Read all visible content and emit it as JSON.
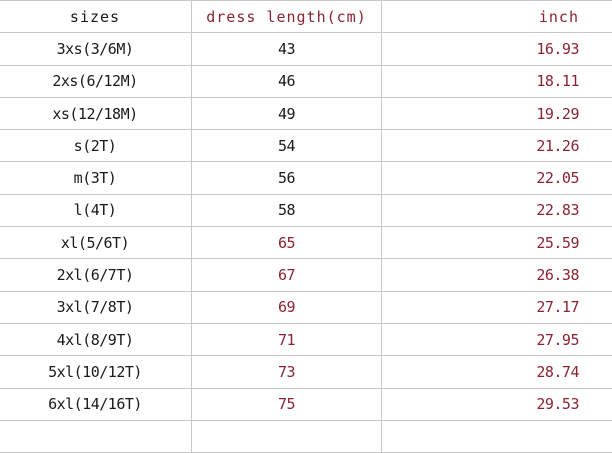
{
  "header": {
    "sizes": "sizes",
    "length": "dress length(cm)",
    "inch": "inch"
  },
  "colors": {
    "red": "#8a2430",
    "black": "#1a1a1a"
  },
  "rows": [
    {
      "size": "3xs(3/6M)",
      "cm": "43",
      "inch": "16.93",
      "cm_red": false
    },
    {
      "size": "2xs(6/12M)",
      "cm": "46",
      "inch": "18.11",
      "cm_red": false
    },
    {
      "size": "xs(12/18M)",
      "cm": "49",
      "inch": "19.29",
      "cm_red": false
    },
    {
      "size": "s(2T)",
      "cm": "54",
      "inch": "21.26",
      "cm_red": false
    },
    {
      "size": "m(3T)",
      "cm": "56",
      "inch": "22.05",
      "cm_red": false
    },
    {
      "size": "l(4T)",
      "cm": "58",
      "inch": "22.83",
      "cm_red": false
    },
    {
      "size": "xl(5/6T)",
      "cm": "65",
      "inch": "25.59",
      "cm_red": true
    },
    {
      "size": "2xl(6/7T)",
      "cm": "67",
      "inch": "26.38",
      "cm_red": true
    },
    {
      "size": "3xl(7/8T)",
      "cm": "69",
      "inch": "27.17",
      "cm_red": true
    },
    {
      "size": "4xl(8/9T)",
      "cm": "71",
      "inch": "27.95",
      "cm_red": true
    },
    {
      "size": "5xl(10/12T)",
      "cm": "73",
      "inch": "28.74",
      "cm_red": true
    },
    {
      "size": "6xl(14/16T)",
      "cm": "75",
      "inch": "29.53",
      "cm_red": true
    }
  ]
}
